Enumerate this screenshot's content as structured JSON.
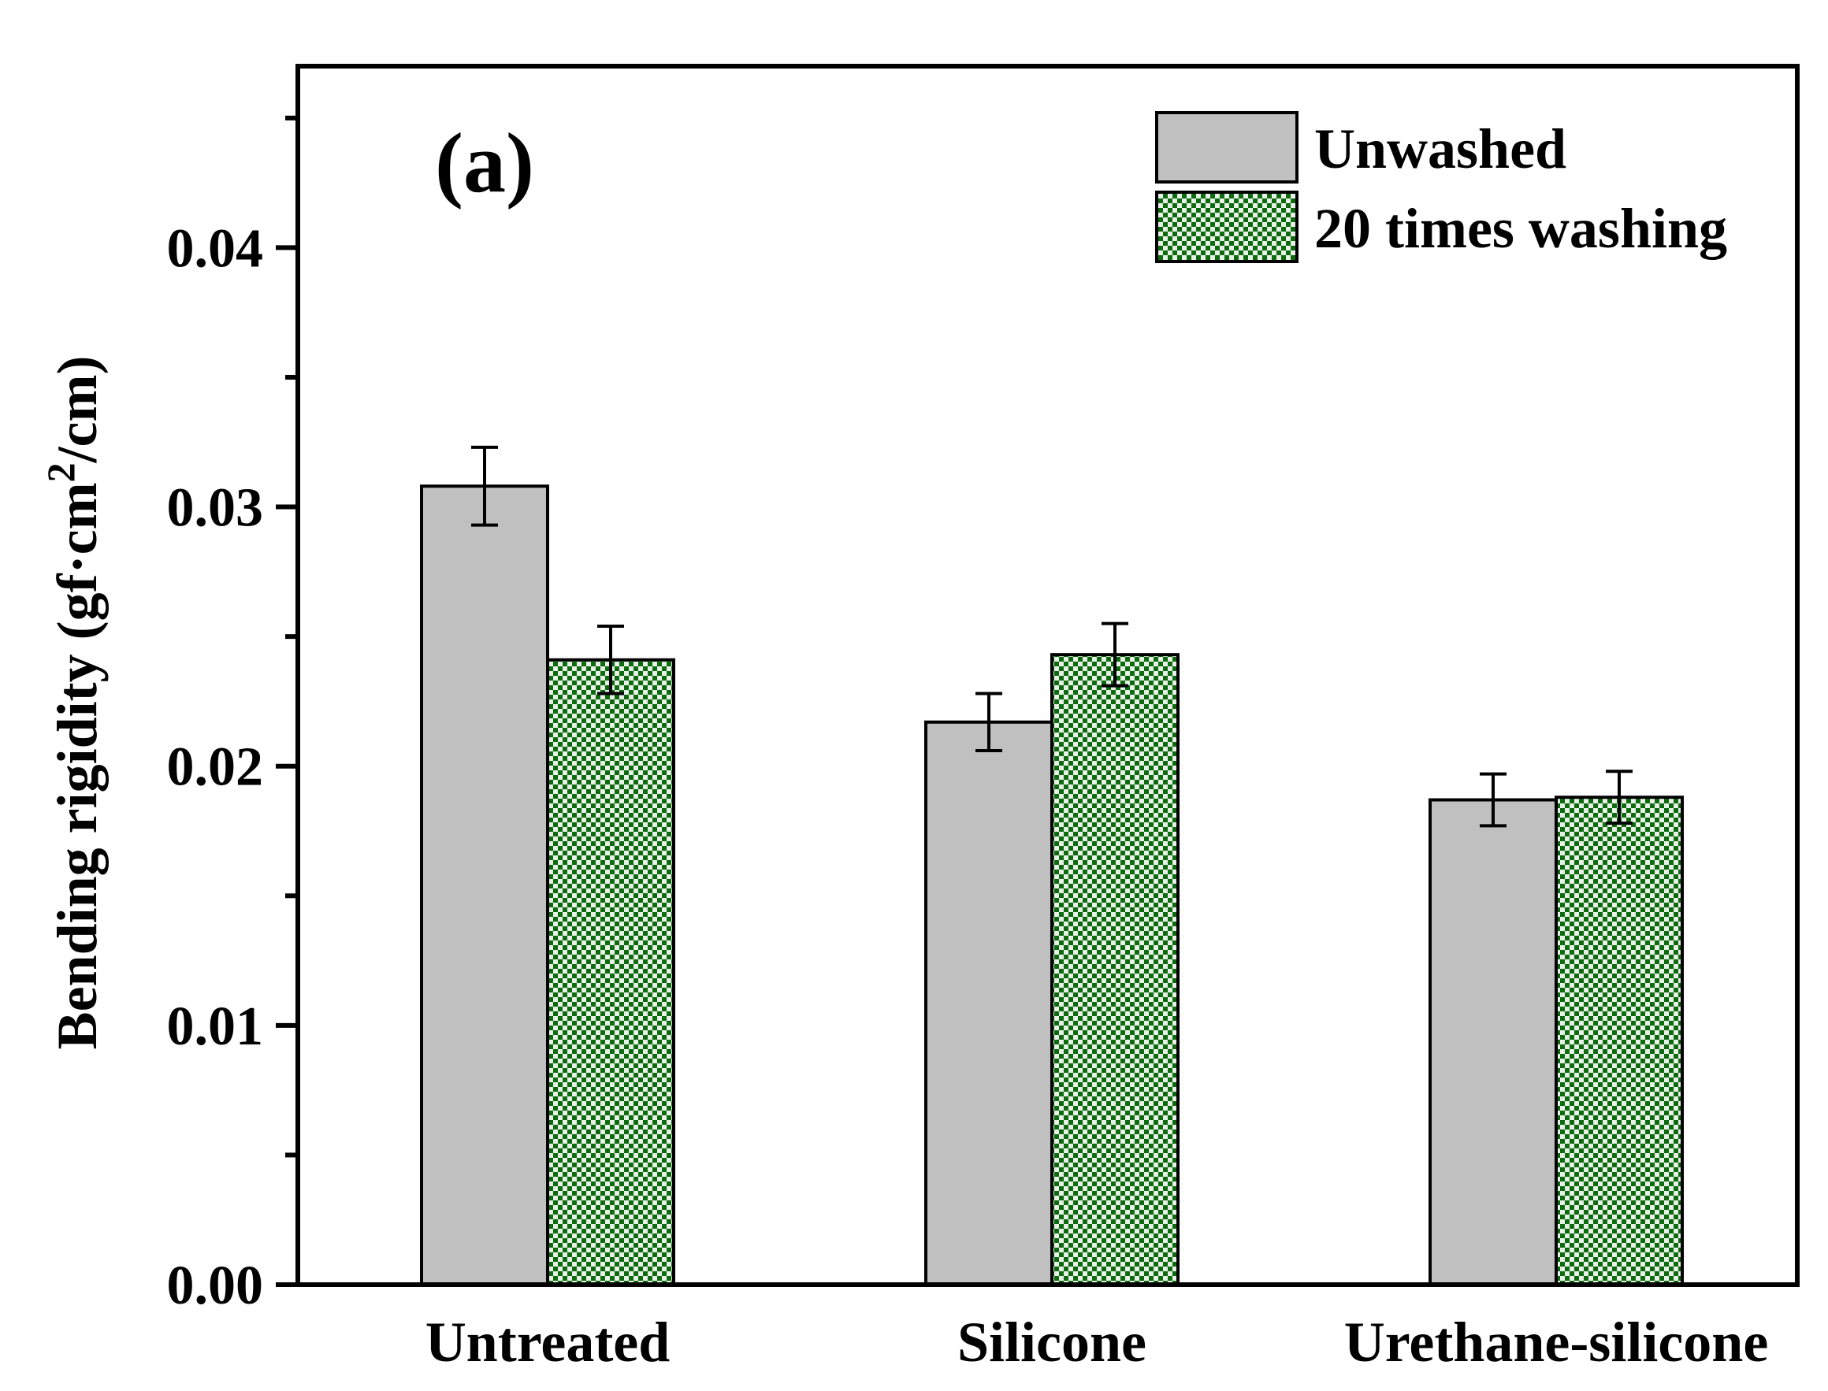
{
  "chart_data": {
    "type": "bar",
    "panel_label": "(a)",
    "title": "",
    "xlabel": "",
    "ylabel_main": "Bending rigidity (gf·cm",
    "ylabel_sup": "2",
    "ylabel_tail": "/cm)",
    "categories": [
      "Untreated",
      "Silicone",
      "Urethane-silicone"
    ],
    "ylim": [
      0,
      0.047
    ],
    "y_ticks": [
      0.0,
      0.01,
      0.02,
      0.03,
      0.04
    ],
    "y_tick_labels": [
      "0.00",
      "0.01",
      "0.02",
      "0.03",
      "0.04"
    ],
    "y_minor_ticks": [
      0.005,
      0.015,
      0.025,
      0.035,
      0.045
    ],
    "legend_position": "top-right",
    "series": [
      {
        "name": "Unwashed",
        "color": "#c0c0c0",
        "pattern": "solid",
        "values": [
          0.0308,
          0.0217,
          0.0187
        ],
        "errors": [
          0.0015,
          0.0011,
          0.001
        ]
      },
      {
        "name": "20 times washing",
        "color": "#0c6b0c",
        "pattern": "checker",
        "values": [
          0.0241,
          0.0243,
          0.0188
        ],
        "errors": [
          0.0013,
          0.0012,
          0.001
        ]
      }
    ]
  }
}
